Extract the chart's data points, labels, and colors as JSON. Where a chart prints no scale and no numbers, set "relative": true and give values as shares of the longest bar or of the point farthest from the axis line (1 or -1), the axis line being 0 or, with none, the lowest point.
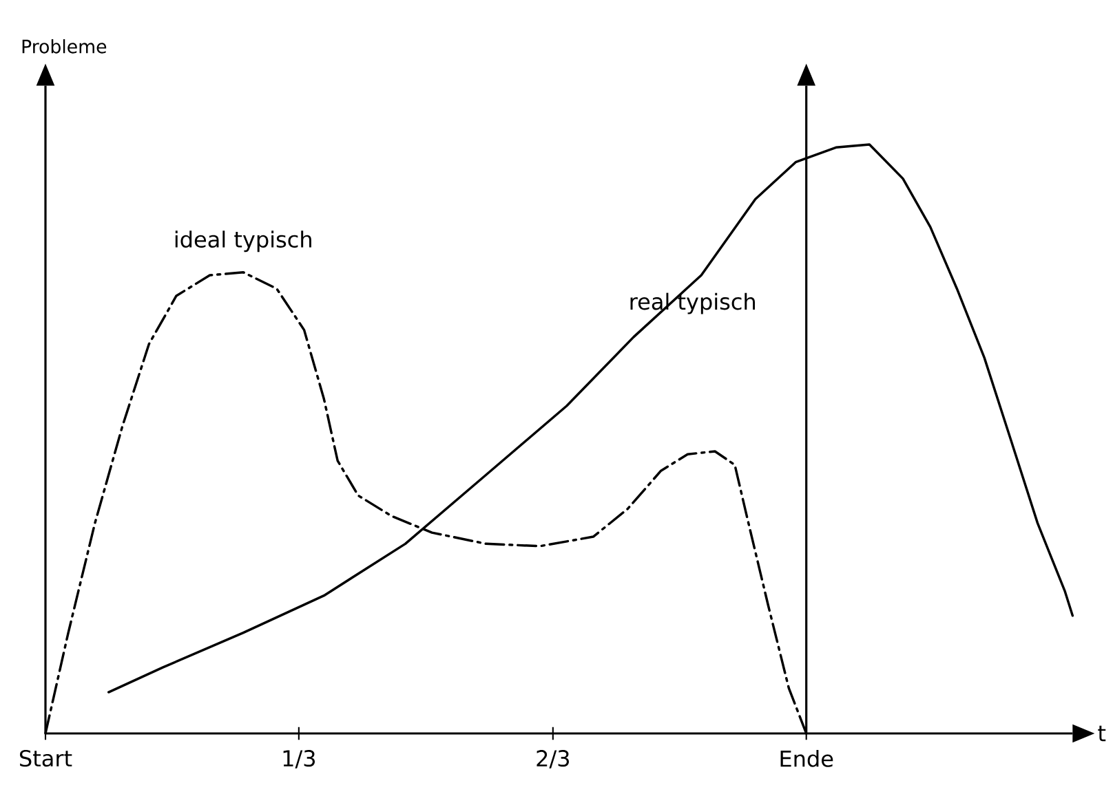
{
  "chart_data": {
    "type": "line",
    "relative": true,
    "xlabel": "t",
    "ylabel": "Probleme",
    "xlim": [
      0,
      1.35
    ],
    "xticks": [
      {
        "value": 0,
        "label": "Start"
      },
      {
        "value": 0.333,
        "label": "1/3"
      },
      {
        "value": 0.667,
        "label": "2/3"
      },
      {
        "value": 1,
        "label": "Ende"
      }
    ],
    "ref_lines": [
      {
        "axis": "x",
        "value": 1,
        "label": null
      }
    ],
    "legend": false,
    "grid": false,
    "marker": "none",
    "series": [
      {
        "name": "ideal typisch",
        "color": "#000000",
        "line_style": "dashdot",
        "x": [
          0,
          0.03,
          0.065,
          0.101,
          0.136,
          0.172,
          0.216,
          0.26,
          0.304,
          0.34,
          0.366,
          0.384,
          0.411,
          0.455,
          0.508,
          0.579,
          0.65,
          0.72,
          0.765,
          0.809,
          0.844,
          0.88,
          0.906,
          0.924,
          0.95,
          0.977,
          1.0
        ],
        "values": [
          0,
          0.171,
          0.357,
          0.521,
          0.661,
          0.743,
          0.778,
          0.783,
          0.755,
          0.685,
          0.568,
          0.463,
          0.404,
          0.369,
          0.341,
          0.322,
          0.318,
          0.334,
          0.381,
          0.446,
          0.474,
          0.479,
          0.456,
          0.357,
          0.217,
          0.077,
          0
        ]
      },
      {
        "name": "real typisch",
        "color": "#000000",
        "line_style": "solid",
        "x": [
          0.083,
          0.154,
          0.26,
          0.366,
          0.473,
          0.579,
          0.685,
          0.773,
          0.862,
          0.933,
          0.986,
          1.039,
          1.083,
          1.127,
          1.163,
          1.198,
          1.234,
          1.269,
          1.304,
          1.34,
          1.35
        ],
        "values": [
          0.07,
          0.112,
          0.171,
          0.234,
          0.322,
          0.439,
          0.556,
          0.673,
          0.778,
          0.907,
          0.97,
          0.995,
          1.0,
          0.942,
          0.86,
          0.755,
          0.638,
          0.498,
          0.357,
          0.241,
          0.2
        ]
      }
    ]
  }
}
